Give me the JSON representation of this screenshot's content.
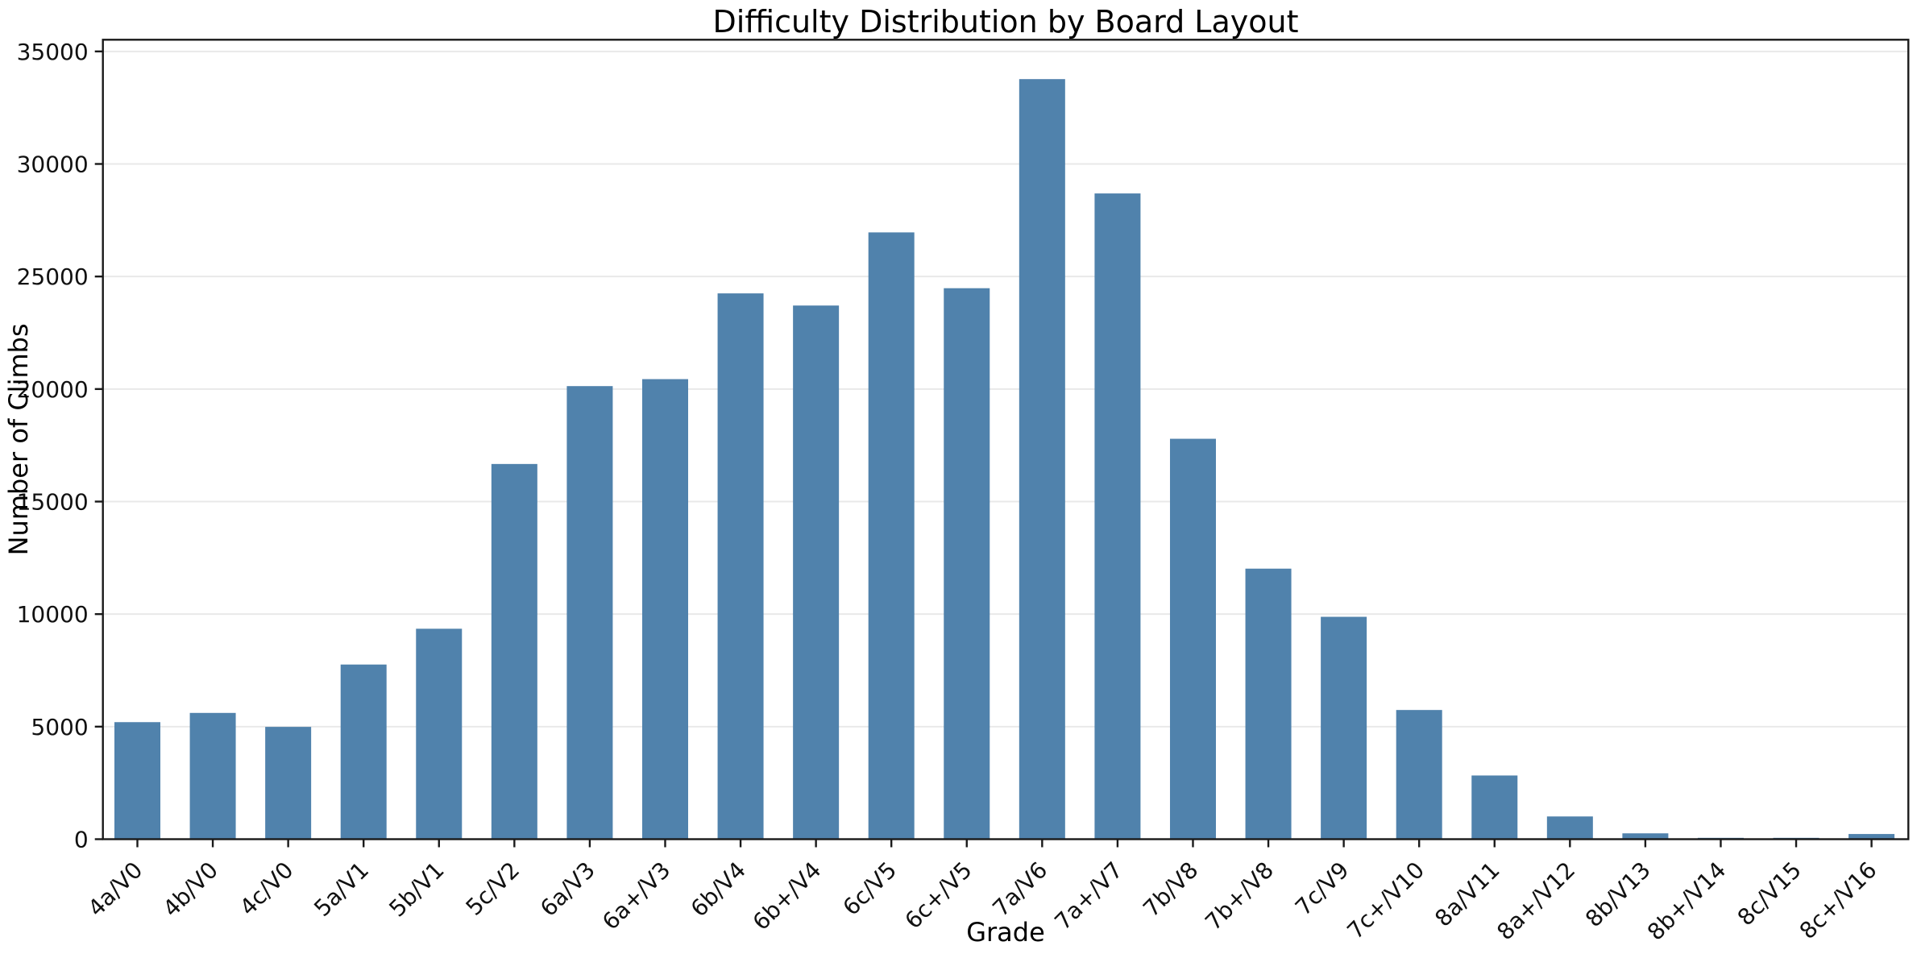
{
  "chart_data": {
    "type": "bar",
    "title": "Difficulty Distribution by Board Layout",
    "xlabel": "Grade",
    "ylabel": "Number of Climbs",
    "categories": [
      "4a/V0",
      "4b/V0",
      "4c/V0",
      "5a/V1",
      "5b/V1",
      "5c/V2",
      "6a/V3",
      "6a+/V3",
      "6b/V4",
      "6b+/V4",
      "6c/V5",
      "6c+/V5",
      "7a/V6",
      "7a+/V7",
      "7b/V8",
      "7b+/V8",
      "7c/V9",
      "7c+/V10",
      "8a/V11",
      "8a+/V12",
      "8b/V13",
      "8b+/V14",
      "8c/V15",
      "8c+/V16"
    ],
    "values": [
      5200,
      5610,
      4990,
      7760,
      9350,
      16670,
      20130,
      20440,
      24250,
      23710,
      26960,
      24480,
      33770,
      28690,
      17790,
      12020,
      9880,
      5740,
      2830,
      1010,
      260,
      60,
      60,
      230
    ],
    "yticks": [
      0,
      5000,
      10000,
      15000,
      20000,
      25000,
      30000,
      35000
    ],
    "ylim": [
      0,
      35520
    ],
    "xtick_rotation": 45,
    "grid": "horizontal-only",
    "legend": "none",
    "bar_color": "#5082ac",
    "grid_color": "#e9e9e9",
    "spine_color": "#1a1a1a",
    "text_color": "#111111",
    "background_color": "#ffffff"
  }
}
